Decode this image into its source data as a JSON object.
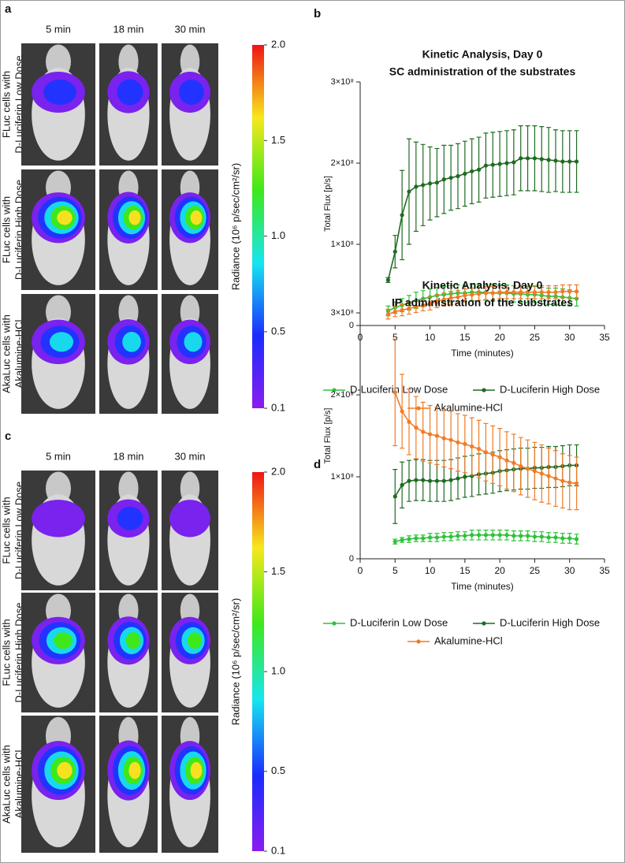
{
  "panels": [
    {
      "label": "a",
      "columns": [
        "5 min",
        "18 min",
        "30 min"
      ],
      "rows": [
        [
          "FLuc cells with",
          "D-Luciferin Low Dose"
        ],
        [
          "FLuc cells with",
          "D-Luciferin High Dose"
        ],
        [
          "AkaLuc cells with",
          "Akalumine-HCl"
        ]
      ],
      "colorbar": {
        "label": "Radiance (10⁶ p/sec/cm²/sr)",
        "ticks": [
          {
            "value": 2,
            "label": "2.0"
          },
          1.5,
          {
            "value": 1,
            "label": "1.0"
          },
          0.5,
          0.1
        ]
      }
    },
    {
      "label": "c",
      "columns": [
        "5 min",
        "18 min",
        "30 min"
      ],
      "rows": [
        [
          "FLuc cells with",
          "D-Luciferin Low Dose"
        ],
        [
          "FLuc cells with",
          "D-Luciferin High Dose"
        ],
        [
          "AkaLuc cells with",
          "Akalumine-HCl"
        ]
      ],
      "colorbar": {
        "label": "Radiance (10⁶ p/sec/cm²/sr)",
        "ticks": [
          {
            "value": 2,
            "label": "2.0"
          },
          1.5,
          {
            "value": 1,
            "label": "1.0"
          },
          0.5,
          0.1
        ]
      }
    }
  ],
  "chart_data": [
    {
      "type": "line",
      "label": "b",
      "title": "Kinetic Analysis, Day 0",
      "subtitle": "SC administration of the substrates",
      "x_label": "Time (minutes)",
      "y_label": "Total Flux [p/s]",
      "xlim": [
        0,
        35
      ],
      "xticks": [
        0,
        5,
        10,
        15,
        20,
        25,
        30,
        35
      ],
      "ylim": [
        0,
        300000000
      ],
      "yticks": [
        0,
        {
          "value": 100000000,
          "label": "1×10⁸"
        },
        {
          "value": 200000000,
          "label": "2×10⁸"
        },
        {
          "value": 300000000,
          "label": "3×10⁸"
        }
      ],
      "x": [
        4,
        5,
        6,
        7,
        8,
        9,
        10,
        11,
        12,
        13,
        14,
        15,
        16,
        17,
        18,
        19,
        20,
        21,
        22,
        23,
        24,
        25,
        26,
        27,
        28,
        29,
        30,
        31
      ],
      "series": [
        {
          "name": "D-Luciferin Low Dose",
          "color": "#2ec23a",
          "values": [
            18000000,
            22000000,
            25000000,
            28000000,
            31000000,
            33000000,
            35000000,
            37000000,
            38000000,
            39000000,
            40000000,
            40000000,
            41000000,
            41000000,
            41000000,
            40000000,
            40000000,
            40000000,
            39000000,
            39000000,
            38000000,
            38000000,
            37000000,
            36000000,
            36000000,
            35000000,
            34000000,
            33000000
          ],
          "errors": [
            6000000,
            7000000,
            8000000,
            9000000,
            10000000,
            10000000,
            10000000,
            10000000,
            10000000,
            10000000,
            10000000,
            10000000,
            10000000,
            10000000,
            10000000,
            10000000,
            10000000,
            10000000,
            10000000,
            10000000,
            10000000,
            10000000,
            10000000,
            10000000,
            10000000,
            10000000,
            10000000,
            9000000
          ]
        },
        {
          "name": "D-Luciferin High Dose",
          "color": "#1f6b22",
          "values": [
            56000000,
            91000000,
            136000000,
            165000000,
            171000000,
            173000000,
            175000000,
            176000000,
            180000000,
            182000000,
            184000000,
            187000000,
            190000000,
            192000000,
            197000000,
            198000000,
            199000000,
            200000000,
            201000000,
            206000000,
            206000000,
            206000000,
            205000000,
            204000000,
            203000000,
            202000000,
            202000000,
            202000000
          ],
          "errors": [
            3000000,
            20000000,
            55000000,
            65000000,
            55000000,
            50000000,
            45000000,
            42000000,
            42000000,
            40000000,
            40000000,
            40000000,
            40000000,
            40000000,
            40000000,
            40000000,
            40000000,
            40000000,
            40000000,
            40000000,
            40000000,
            40000000,
            40000000,
            40000000,
            38000000,
            38000000,
            38000000,
            38000000
          ]
        },
        {
          "name": "Akalumine-HCl",
          "color": "#f07b25",
          "values": [
            14000000,
            17000000,
            19000000,
            21000000,
            23000000,
            25000000,
            27000000,
            30000000,
            32000000,
            34000000,
            35000000,
            37000000,
            38000000,
            39000000,
            40000000,
            40000000,
            41000000,
            41000000,
            41000000,
            41000000,
            41000000,
            41000000,
            41000000,
            41000000,
            41000000,
            42000000,
            42000000,
            42000000
          ],
          "errors": [
            6000000,
            6000000,
            7000000,
            7000000,
            7000000,
            7000000,
            8000000,
            8000000,
            8000000,
            8000000,
            8000000,
            8000000,
            8000000,
            8000000,
            8000000,
            8000000,
            8000000,
            8000000,
            8000000,
            8000000,
            8000000,
            8000000,
            8000000,
            8000000,
            8000000,
            8000000,
            8000000,
            8000000
          ]
        }
      ]
    },
    {
      "type": "line",
      "label": "d",
      "title": "Kinetic Analysis, Day 0",
      "subtitle": "IP administration of the substrates",
      "x_label": "Time (minutes)",
      "y_label": "Total Flux [p/s]",
      "xlim": [
        0,
        35
      ],
      "xticks": [
        0,
        5,
        10,
        15,
        20,
        25,
        30,
        35
      ],
      "ylim": [
        0,
        300000000
      ],
      "yticks": [
        0,
        {
          "value": 100000000,
          "label": "1×10⁸"
        },
        {
          "value": 200000000,
          "label": "2×10⁸"
        },
        {
          "value": 300000000,
          "label": "3×10⁸"
        }
      ],
      "x": [
        5,
        6,
        7,
        8,
        9,
        10,
        11,
        12,
        13,
        14,
        15,
        16,
        17,
        18,
        19,
        20,
        21,
        22,
        23,
        24,
        25,
        26,
        27,
        28,
        29,
        30,
        31
      ],
      "series": [
        {
          "name": "D-Luciferin Low Dose",
          "color": "#2ec23a",
          "values": [
            21000000,
            23000000,
            24000000,
            25000000,
            25000000,
            26000000,
            26000000,
            27000000,
            27000000,
            28000000,
            28000000,
            29000000,
            29000000,
            29000000,
            29000000,
            29000000,
            29000000,
            28000000,
            28000000,
            28000000,
            27000000,
            27000000,
            26000000,
            26000000,
            25000000,
            25000000,
            24000000
          ],
          "errors": [
            3000000,
            3000000,
            4000000,
            4000000,
            4000000,
            5000000,
            5000000,
            5000000,
            5000000,
            5000000,
            5000000,
            6000000,
            6000000,
            6000000,
            6000000,
            6000000,
            6000000,
            6000000,
            6000000,
            6000000,
            6000000,
            6000000,
            6000000,
            6000000,
            6000000,
            6000000,
            6000000
          ]
        },
        {
          "name": "D-Luciferin High Dose",
          "color": "#1f6b22",
          "values": [
            76000000,
            90000000,
            95000000,
            96000000,
            96000000,
            95000000,
            95000000,
            95000000,
            96000000,
            98000000,
            100000000,
            101000000,
            103000000,
            104000000,
            105000000,
            107000000,
            108000000,
            109000000,
            110000000,
            110000000,
            111000000,
            111000000,
            112000000,
            112000000,
            113000000,
            114000000,
            114000000
          ],
          "errors": [
            33000000,
            28000000,
            25000000,
            25000000,
            25000000,
            25000000,
            25000000,
            25000000,
            25000000,
            25000000,
            25000000,
            25000000,
            25000000,
            25000000,
            25000000,
            25000000,
            25000000,
            25000000,
            25000000,
            25000000,
            25000000,
            25000000,
            25000000,
            25000000,
            25000000,
            25000000,
            25000000
          ]
        },
        {
          "name": "Akalumine-HCl",
          "color": "#f07b25",
          "values": [
            203000000,
            180000000,
            167000000,
            160000000,
            155000000,
            152000000,
            150000000,
            147000000,
            145000000,
            142000000,
            140000000,
            137000000,
            134000000,
            130000000,
            127000000,
            124000000,
            120000000,
            117000000,
            113000000,
            110000000,
            107000000,
            104000000,
            101000000,
            98000000,
            95000000,
            93000000,
            92000000
          ],
          "errors": [
            65000000,
            45000000,
            40000000,
            38000000,
            36000000,
            35000000,
            35000000,
            35000000,
            35000000,
            35000000,
            35000000,
            35000000,
            35000000,
            35000000,
            35000000,
            35000000,
            35000000,
            35000000,
            35000000,
            35000000,
            35000000,
            35000000,
            34000000,
            34000000,
            33000000,
            33000000,
            32000000
          ]
        }
      ]
    }
  ]
}
